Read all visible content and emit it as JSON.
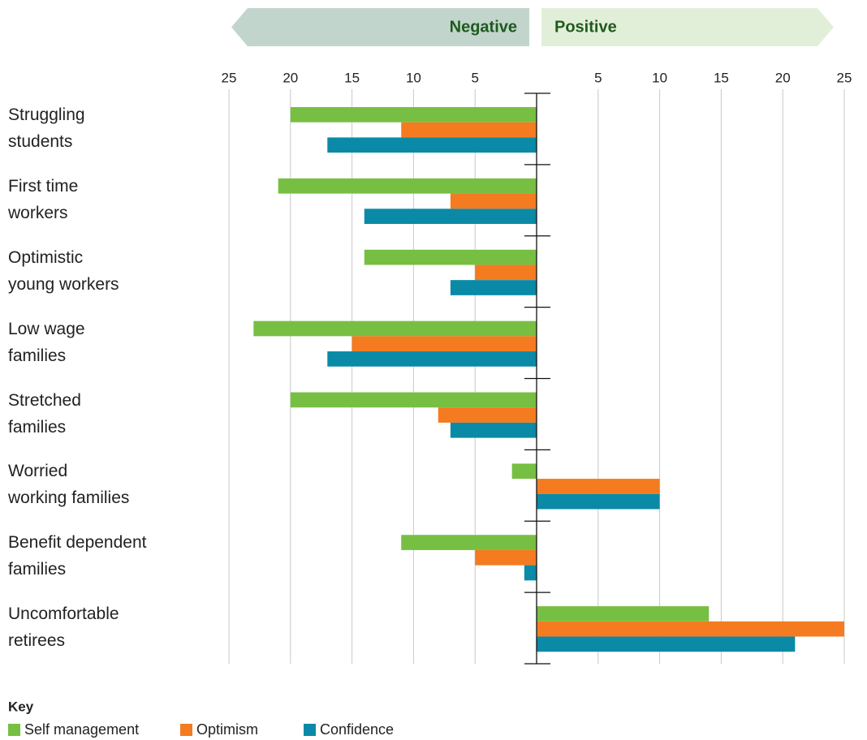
{
  "chart_data": {
    "type": "bar",
    "orientation": "horizontal",
    "banner_negative": "Negative",
    "banner_positive": "Positive",
    "legend_title": "Key",
    "categories": [
      "Struggling\nstudents",
      "First time\nworkers",
      "Optimistic\nyoung workers",
      "Low wage\nfamilies",
      "Stretched\nfamilies",
      "Worried\nworking families",
      "Benefit dependent\nfamilies",
      "Uncomfortable\nretirees"
    ],
    "series": [
      {
        "name": "Self management",
        "color": "#77bf43",
        "values": [
          -20,
          -21,
          -14,
          -23,
          -20,
          -2,
          -11,
          14
        ]
      },
      {
        "name": "Optimism",
        "color": "#f47b20",
        "values": [
          -11,
          -7,
          -5,
          -15,
          -8,
          10,
          -5,
          25
        ]
      },
      {
        "name": "Confidence",
        "color": "#0a8aa6",
        "values": [
          -17,
          -14,
          -7,
          -17,
          -7,
          10,
          -1,
          21
        ]
      }
    ],
    "xlim": [
      -25,
      25
    ],
    "xticks": [
      {
        "value": -25,
        "label": "25"
      },
      {
        "value": -20,
        "label": "20"
      },
      {
        "value": -15,
        "label": "15"
      },
      {
        "value": -10,
        "label": "10"
      },
      {
        "value": -5,
        "label": "5"
      },
      5,
      10,
      15,
      20,
      25
    ],
    "grid": true
  }
}
